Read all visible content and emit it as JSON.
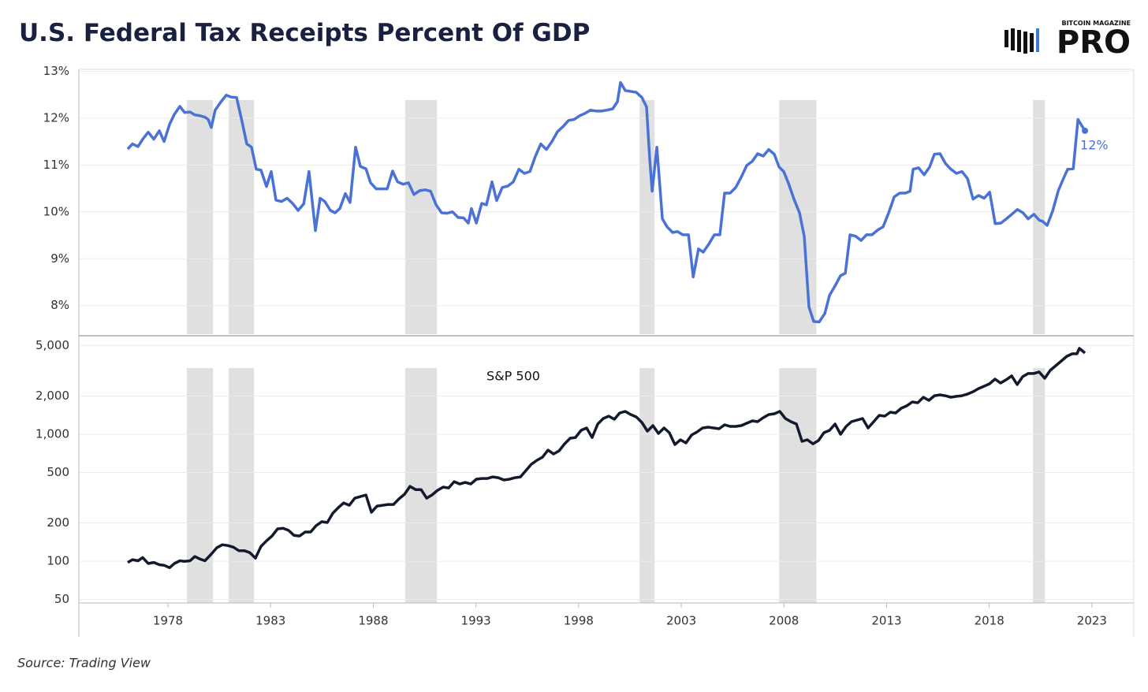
{
  "title": "U.S. Federal Tax Receipts Percent Of GDP",
  "logo": {
    "small": "BITCOIN MAGAZINE",
    "big": "PRO"
  },
  "source": "Source: Trading View",
  "chart_data": [
    {
      "type": "line",
      "xlim": [
        1973.66,
        2025.04
      ],
      "ylim": [
        7.39,
        13.04
      ],
      "grid": true,
      "yticks": [
        {
          "value": 8,
          "label": "8%"
        },
        {
          "value": 9,
          "label": "9%"
        },
        {
          "value": 10,
          "label": "10%"
        },
        {
          "value": 11,
          "label": "11%"
        },
        {
          "value": 12,
          "label": "12%"
        },
        {
          "value": 13,
          "label": "13%"
        }
      ],
      "shaded_ranges": [
        [
          1978.92,
          1980.19
        ],
        [
          1980.96,
          1982.19
        ],
        [
          1989.56,
          1991.1
        ],
        [
          2000.97,
          2001.7
        ],
        [
          2007.77,
          2009.58
        ],
        [
          2020.13,
          2020.71
        ]
      ],
      "shade_color": "#e0e0e0",
      "series": [
        {
          "color": "#4a72d6",
          "end_label": "12%",
          "x": [
            1976.04,
            1976.27,
            1976.54,
            1976.77,
            1977.04,
            1977.31,
            1977.58,
            1977.81,
            1978.08,
            1978.31,
            1978.58,
            1978.81,
            1979.08,
            1979.31,
            1979.57,
            1979.8,
            1979.96,
            1980.11,
            1980.3,
            1980.57,
            1980.84,
            1981.07,
            1981.34,
            1981.57,
            1981.84,
            1982.07,
            1982.3,
            1982.53,
            1982.8,
            1983.03,
            1983.26,
            1983.53,
            1983.8,
            1984.07,
            1984.34,
            1984.61,
            1984.87,
            1985.18,
            1985.41,
            1985.64,
            1985.91,
            1986.14,
            1986.37,
            1986.64,
            1986.87,
            1987.14,
            1987.37,
            1987.64,
            1987.87,
            1988.14,
            1988.41,
            1988.68,
            1988.94,
            1989.18,
            1989.45,
            1989.71,
            1989.98,
            1990.25,
            1990.52,
            1990.79,
            1991.06,
            1991.33,
            1991.59,
            1991.86,
            1992.13,
            1992.4,
            1992.63,
            1992.78,
            1993.02,
            1993.28,
            1993.51,
            1993.78,
            1994.01,
            1994.28,
            1994.55,
            1994.82,
            1995.09,
            1995.36,
            1995.63,
            1995.89,
            1996.16,
            1996.43,
            1996.7,
            1996.97,
            1997.24,
            1997.51,
            1997.78,
            1998.05,
            1998.31,
            1998.58,
            1998.85,
            1999.12,
            1999.39,
            1999.66,
            1999.89,
            2000.04,
            2000.27,
            2000.54,
            2000.81,
            2001.08,
            2001.31,
            2001.46,
            2001.58,
            2001.81,
            2002.08,
            2002.31,
            2002.58,
            2002.81,
            2003.08,
            2003.35,
            2003.58,
            2003.84,
            2004.07,
            2004.34,
            2004.61,
            2004.88,
            2005.11,
            2005.38,
            2005.65,
            2005.92,
            2006.19,
            2006.46,
            2006.72,
            2006.99,
            2007.26,
            2007.53,
            2007.76,
            2007.99,
            2008.22,
            2008.49,
            2008.76,
            2008.99,
            2009.22,
            2009.45,
            2009.72,
            2009.99,
            2010.22,
            2010.49,
            2010.76,
            2010.99,
            2011.22,
            2011.49,
            2011.76,
            2012.02,
            2012.29,
            2012.56,
            2012.83,
            2013.1,
            2013.37,
            2013.64,
            2013.91,
            2014.14,
            2014.29,
            2014.56,
            2014.83,
            2015.1,
            2015.33,
            2015.6,
            2015.87,
            2016.13,
            2016.4,
            2016.67,
            2016.94,
            2017.21,
            2017.48,
            2017.75,
            2018.02,
            2018.29,
            2018.56,
            2018.83,
            2019.1,
            2019.37,
            2019.64,
            2019.9,
            2020.17,
            2020.44,
            2020.59,
            2020.82,
            2021.09,
            2021.36,
            2021.59,
            2021.82,
            2022.09,
            2022.32,
            2022.52,
            2022.66
          ],
          "values": [
            11.34,
            11.45,
            11.39,
            11.55,
            11.7,
            11.55,
            11.73,
            11.5,
            11.87,
            12.08,
            12.25,
            12.12,
            12.13,
            12.07,
            12.05,
            12.02,
            11.97,
            11.8,
            12.17,
            12.34,
            12.49,
            12.45,
            12.44,
            12.0,
            11.45,
            11.38,
            10.91,
            10.89,
            10.54,
            10.86,
            10.25,
            10.22,
            10.29,
            10.18,
            10.03,
            10.17,
            10.86,
            9.6,
            10.29,
            10.22,
            10.03,
            9.98,
            10.07,
            10.39,
            10.2,
            11.38,
            10.97,
            10.92,
            10.62,
            10.49,
            10.49,
            10.49,
            10.87,
            10.64,
            10.59,
            10.62,
            10.37,
            10.45,
            10.47,
            10.44,
            10.15,
            9.98,
            9.97,
            10.0,
            9.88,
            9.87,
            9.76,
            10.07,
            9.76,
            10.18,
            10.15,
            10.64,
            10.24,
            10.52,
            10.55,
            10.64,
            10.91,
            10.82,
            10.86,
            11.18,
            11.45,
            11.33,
            11.5,
            11.71,
            11.82,
            11.95,
            11.97,
            12.05,
            12.1,
            12.17,
            12.15,
            12.15,
            12.17,
            12.2,
            12.35,
            12.76,
            12.59,
            12.57,
            12.55,
            12.44,
            12.24,
            11.16,
            10.44,
            11.38,
            9.85,
            9.68,
            9.56,
            9.58,
            9.51,
            9.51,
            8.61,
            9.21,
            9.14,
            9.31,
            9.51,
            9.51,
            10.4,
            10.4,
            10.52,
            10.74,
            10.99,
            11.08,
            11.24,
            11.19,
            11.33,
            11.23,
            10.96,
            10.86,
            10.61,
            10.27,
            9.98,
            9.48,
            7.97,
            7.66,
            7.65,
            7.83,
            8.22,
            8.42,
            8.64,
            8.69,
            9.51,
            9.48,
            9.39,
            9.51,
            9.51,
            9.61,
            9.68,
            9.98,
            10.32,
            10.4,
            10.4,
            10.44,
            10.91,
            10.94,
            10.79,
            10.96,
            11.23,
            11.24,
            11.03,
            10.91,
            10.82,
            10.86,
            10.71,
            10.27,
            10.35,
            10.29,
            10.42,
            9.75,
            9.76,
            9.85,
            9.95,
            10.05,
            9.98,
            9.85,
            9.95,
            9.82,
            9.8,
            9.71,
            10.02,
            10.45,
            10.69,
            10.91,
            10.92,
            11.97,
            11.83,
            11.73
          ]
        }
      ]
    },
    {
      "type": "line",
      "log": true,
      "xlim": [
        1973.66,
        2025.04
      ],
      "ylim": [
        47,
        5800
      ],
      "grid": true,
      "xticks": [
        1978,
        1983,
        1988,
        1993,
        1998,
        2003,
        2008,
        2013,
        2018,
        2023
      ],
      "yticks": [
        50,
        100,
        200,
        500,
        {
          "value": 1000,
          "label": "1,000"
        },
        {
          "value": 2000,
          "label": "2,000"
        },
        {
          "value": 5000,
          "label": "5,000"
        }
      ],
      "shaded_ranges": [
        [
          1978.92,
          1980.19
        ],
        [
          1980.96,
          1982.19
        ],
        [
          1989.56,
          1991.1
        ],
        [
          2000.97,
          2001.7
        ],
        [
          2007.77,
          2009.58
        ],
        [
          2020.13,
          2020.71
        ]
      ],
      "shade_color": "#e0e0e0",
      "series": [
        {
          "name": "S&P 500",
          "color": "#141a2e",
          "x": [
            1976.04,
            1976.27,
            1976.54,
            1976.77,
            1977.04,
            1977.31,
            1977.58,
            1977.81,
            1978.08,
            1978.31,
            1978.58,
            1978.81,
            1979.08,
            1979.31,
            1979.57,
            1979.8,
            1980.11,
            1980.38,
            1980.65,
            1980.92,
            1981.19,
            1981.46,
            1981.73,
            1981.99,
            1982.26,
            1982.53,
            1982.8,
            1983.07,
            1983.34,
            1983.61,
            1983.88,
            1984.14,
            1984.41,
            1984.68,
            1984.95,
            1985.22,
            1985.49,
            1985.76,
            1986.03,
            1986.29,
            1986.56,
            1986.83,
            1987.1,
            1987.37,
            1987.64,
            1987.91,
            1988.18,
            1988.45,
            1988.71,
            1988.98,
            1989.25,
            1989.52,
            1989.79,
            1990.06,
            1990.33,
            1990.6,
            1990.86,
            1991.13,
            1991.4,
            1991.67,
            1991.94,
            1992.21,
            1992.48,
            1992.75,
            1993.02,
            1993.28,
            1993.55,
            1993.82,
            1994.09,
            1994.36,
            1994.63,
            1994.9,
            1995.17,
            1995.43,
            1995.7,
            1995.97,
            1996.24,
            1996.51,
            1996.78,
            1997.05,
            1997.32,
            1997.59,
            1997.85,
            1998.12,
            1998.39,
            1998.66,
            1998.93,
            1999.2,
            1999.47,
            1999.74,
            2000.0,
            2000.27,
            2000.54,
            2000.81,
            2001.08,
            2001.35,
            2001.62,
            2001.89,
            2002.16,
            2002.42,
            2002.69,
            2002.96,
            2003.23,
            2003.5,
            2003.77,
            2004.04,
            2004.31,
            2004.57,
            2004.84,
            2005.11,
            2005.38,
            2005.65,
            2005.92,
            2006.19,
            2006.46,
            2006.72,
            2006.99,
            2007.26,
            2007.53,
            2007.8,
            2008.07,
            2008.34,
            2008.61,
            2008.88,
            2009.14,
            2009.41,
            2009.68,
            2009.95,
            2010.22,
            2010.49,
            2010.76,
            2011.03,
            2011.29,
            2011.56,
            2011.83,
            2012.1,
            2012.37,
            2012.64,
            2012.91,
            2013.18,
            2013.44,
            2013.71,
            2013.98,
            2014.25,
            2014.52,
            2014.79,
            2015.06,
            2015.33,
            2015.6,
            2015.86,
            2016.13,
            2016.4,
            2016.67,
            2016.94,
            2017.21,
            2017.48,
            2017.75,
            2018.01,
            2018.28,
            2018.55,
            2018.82,
            2019.09,
            2019.36,
            2019.63,
            2019.89,
            2020.16,
            2020.43,
            2020.7,
            2020.97,
            2021.24,
            2021.51,
            2021.78,
            2022.04,
            2022.27,
            2022.39,
            2022.66
          ],
          "values": [
            98,
            103,
            101,
            107,
            96,
            98,
            94,
            93,
            89,
            96,
            101,
            100,
            101,
            109,
            104,
            101,
            114,
            128,
            135,
            133,
            129,
            121,
            121,
            117,
            106,
            131,
            145,
            158,
            180,
            182,
            175,
            160,
            158,
            170,
            170,
            191,
            205,
            202,
            239,
            264,
            288,
            276,
            314,
            323,
            333,
            243,
            272,
            276,
            280,
            280,
            310,
            337,
            389,
            367,
            367,
            314,
            333,
            362,
            384,
            378,
            424,
            406,
            418,
            406,
            443,
            449,
            449,
            462,
            455,
            437,
            443,
            455,
            462,
            518,
            581,
            624,
            660,
            751,
            700,
            741,
            842,
            931,
            944,
            1074,
            1121,
            944,
            1204,
            1331,
            1390,
            1312,
            1471,
            1513,
            1430,
            1370,
            1239,
            1059,
            1170,
            1015,
            1121,
            1029,
            830,
            905,
            855,
            986,
            1044,
            1121,
            1138,
            1121,
            1105,
            1187,
            1154,
            1154,
            1170,
            1222,
            1275,
            1257,
            1350,
            1430,
            1450,
            1513,
            1331,
            1257,
            1204,
            879,
            905,
            842,
            892,
            1029,
            1074,
            1204,
            1000,
            1154,
            1257,
            1294,
            1331,
            1121,
            1257,
            1410,
            1390,
            1492,
            1471,
            1603,
            1675,
            1798,
            1772,
            1959,
            1850,
            2013,
            2043,
            2013,
            1959,
            1988,
            2013,
            2073,
            2163,
            2290,
            2393,
            2497,
            2720,
            2531,
            2684,
            2883,
            2463,
            2842,
            3008,
            3008,
            3096,
            2759,
            3186,
            3467,
            3776,
            4119,
            4302,
            4302,
            4749,
            4362
          ]
        }
      ]
    }
  ]
}
